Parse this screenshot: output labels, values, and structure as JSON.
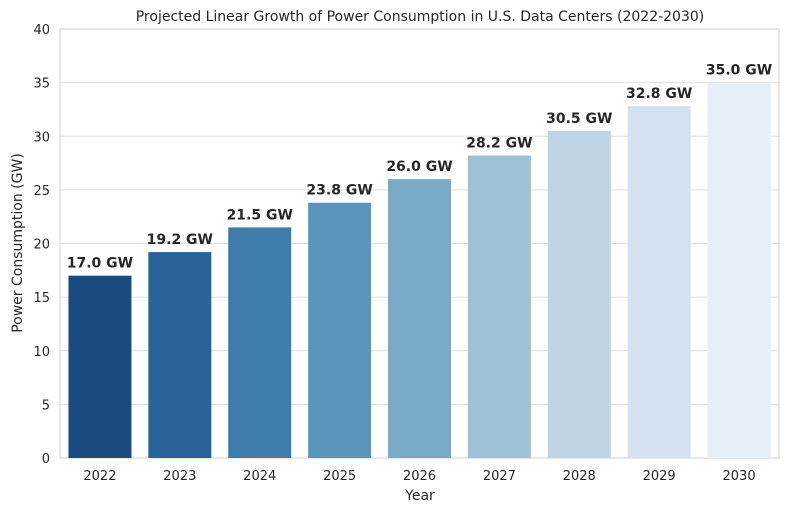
{
  "chart_data": {
    "type": "bar",
    "title": "Projected Linear Growth of Power Consumption in U.S. Data Centers (2022-2030)",
    "xlabel": "Year",
    "ylabel": "Power Consumption (GW)",
    "categories": [
      "2022",
      "2023",
      "2024",
      "2025",
      "2026",
      "2027",
      "2028",
      "2029",
      "2030"
    ],
    "values": [
      17.0,
      19.2,
      21.5,
      23.8,
      26.0,
      28.2,
      30.5,
      32.8,
      35.0
    ],
    "data_labels": [
      "17.0 GW",
      "19.2 GW",
      "21.5 GW",
      "23.8 GW",
      "26.0 GW",
      "28.2 GW",
      "30.5 GW",
      "32.8 GW",
      "35.0 GW"
    ],
    "colors": [
      "#1b4a7e",
      "#2a6399",
      "#3d7cab",
      "#5b95bb",
      "#79abc8",
      "#9dc2d6",
      "#bed3e3",
      "#d4e2ef",
      "#e6eef7"
    ],
    "ylim": [
      0,
      40
    ],
    "yticks": [
      0,
      5,
      10,
      15,
      20,
      25,
      30,
      35,
      40
    ],
    "grid": true
  }
}
